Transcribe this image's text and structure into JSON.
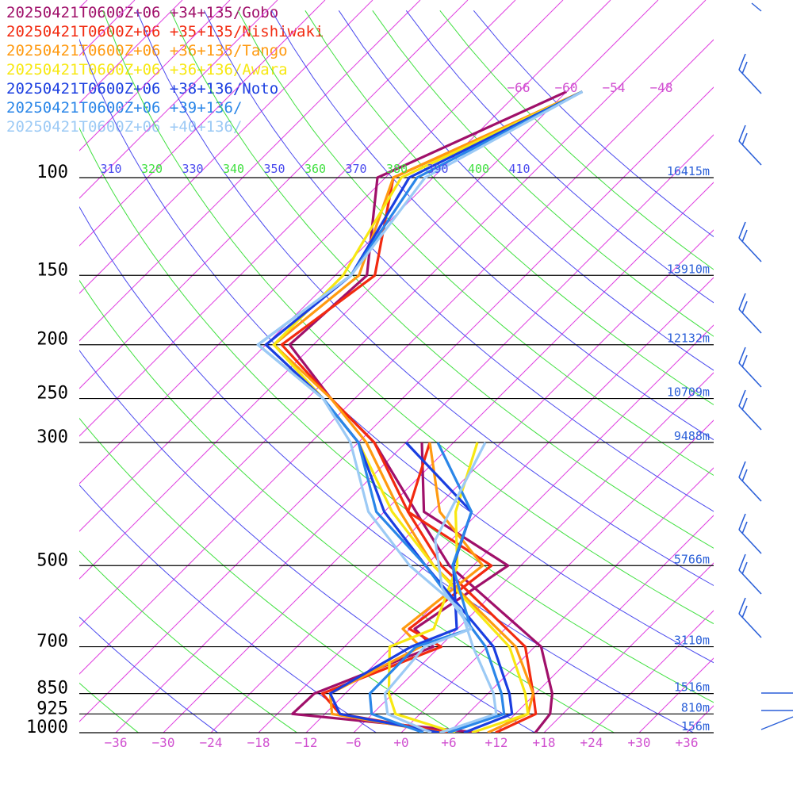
{
  "legend": [
    {
      "label": "20250421T0600Z+06 +34+135/Gobo",
      "color": "#a0106a"
    },
    {
      "label": "20250421T0600Z+06 +35+135/Nishiwaki",
      "color": "#f22a10"
    },
    {
      "label": "20250421T0600Z+06 +36+135/Tango",
      "color": "#ff9a10"
    },
    {
      "label": "20250421T0600Z+06 +36+136/Awara",
      "color": "#f7e812"
    },
    {
      "label": "20250421T0600Z+06 +38+136/Noto",
      "color": "#1a3ee0"
    },
    {
      "label": "20250421T0600Z+06 +39+136/",
      "color": "#2a86e8"
    },
    {
      "label": "20250421T0600Z+06 +40+136/",
      "color": "#9ccaf5"
    }
  ],
  "chart_data": {
    "type": "skew-t",
    "pressure_levels": [
      {
        "p": 100,
        "label": "100",
        "height": "16415m"
      },
      {
        "p": 150,
        "label": "150",
        "height": "13910m"
      },
      {
        "p": 200,
        "label": "200",
        "height": "12132m"
      },
      {
        "p": 250,
        "label": "250",
        "height": "10709m"
      },
      {
        "p": 300,
        "label": "300",
        "height": "9488m"
      },
      {
        "p": 500,
        "label": "500",
        "height": "5766m"
      },
      {
        "p": 700,
        "label": "700",
        "height": "3110m"
      },
      {
        "p": 850,
        "label": "850",
        "height": "1516m"
      },
      {
        "p": 925,
        "label": "925",
        "height": "810m"
      },
      {
        "p": 1000,
        "label": "1000",
        "height": "156m"
      }
    ],
    "x_ticks": [
      -36,
      -30,
      -24,
      -18,
      -12,
      -6,
      0,
      6,
      12,
      18,
      24,
      30,
      36
    ],
    "x_tick_labels": [
      "−36",
      "−30",
      "−24",
      "−18",
      "−12",
      "−6",
      "+0",
      "+6",
      "+12",
      "+18",
      "+24",
      "+30",
      "+36"
    ],
    "top_isotherm_labels": [
      {
        "t": -66,
        "label": "−66"
      },
      {
        "t": -60,
        "label": "−60"
      },
      {
        "t": -54,
        "label": "−54"
      },
      {
        "t": -48,
        "label": "−48"
      }
    ],
    "theta_labels": [
      "310",
      "320",
      "330",
      "340",
      "350",
      "360",
      "370",
      "380",
      "390",
      "400",
      "410"
    ],
    "colors": {
      "isotherm": "#e040e0",
      "isobar": "#000000",
      "dry_adiabat_a": "#4a4aee",
      "dry_adiabat_b": "#40e040",
      "height_label": "#2a5fd8",
      "tick_label": "#d050d0"
    },
    "series": [
      {
        "name": "20250421T0600Z+06 +34+135/Gobo",
        "temperature": [
          [
            1000,
            16.9
          ],
          [
            925,
            16.4
          ],
          [
            850,
            14.1
          ],
          [
            700,
            6.8
          ],
          [
            500,
            -15.0
          ],
          [
            400,
            -26.0
          ],
          [
            300,
            -40.0
          ],
          [
            250,
            -51.0
          ],
          [
            200,
            -63.0
          ],
          [
            150,
            -62.0
          ],
          [
            100,
            -73.0
          ],
          [
            70,
            -60.0
          ]
        ],
        "dewpoint": [
          [
            1000,
            9.8
          ],
          [
            925,
            -16.1
          ],
          [
            850,
            -15.9
          ],
          [
            700,
            -6.8
          ],
          [
            650,
            -11.4
          ],
          [
            500,
            -7.6
          ],
          [
            400,
            -25.0
          ],
          [
            300,
            -34.0
          ]
        ]
      },
      {
        "name": "20250421T0600Z+06 +35+135/Nishiwaki",
        "temperature": [
          [
            1000,
            11.9
          ],
          [
            925,
            14.6
          ],
          [
            850,
            11.7
          ],
          [
            700,
            4.8
          ],
          [
            500,
            -16.0
          ],
          [
            400,
            -27.0
          ],
          [
            300,
            -40.0
          ],
          [
            250,
            -51.0
          ],
          [
            200,
            -64.0
          ],
          [
            150,
            -61.0
          ],
          [
            100,
            -71.0
          ],
          [
            70,
            -58.0
          ]
        ],
        "dewpoint": [
          [
            1000,
            5.8
          ],
          [
            925,
            -10.1
          ],
          [
            850,
            -14.9
          ],
          [
            700,
            -5.8
          ],
          [
            650,
            -12.1
          ],
          [
            500,
            -9.7
          ],
          [
            400,
            -27.0
          ],
          [
            300,
            -33.0
          ]
        ]
      },
      {
        "name": "20250421T0600Z+06 +36+135/Tango",
        "temperature": [
          [
            1000,
            10.9
          ],
          [
            925,
            13.6
          ],
          [
            850,
            11.7
          ],
          [
            700,
            3.6
          ],
          [
            500,
            -17.0
          ],
          [
            400,
            -28.0
          ],
          [
            300,
            -41.0
          ],
          [
            250,
            -51.0
          ],
          [
            200,
            -65.0
          ],
          [
            150,
            -63.0
          ],
          [
            100,
            -71.0
          ],
          [
            70,
            -58.0
          ]
        ],
        "dewpoint": [
          [
            1000,
            5.0
          ],
          [
            925,
            -11.1
          ],
          [
            850,
            -13.9
          ],
          [
            700,
            -8.4
          ],
          [
            650,
            -12.9
          ],
          [
            500,
            -10.8
          ],
          [
            400,
            -23.0
          ],
          [
            300,
            -33.0
          ]
        ]
      },
      {
        "name": "20250421T0600Z+06 +36+136/Awara",
        "temperature": [
          [
            1000,
            8.9
          ],
          [
            925,
            13.6
          ],
          [
            850,
            10.7
          ],
          [
            700,
            2.8
          ],
          [
            500,
            -17.0
          ],
          [
            400,
            -29.0
          ],
          [
            300,
            -42.0
          ],
          [
            250,
            -52.0
          ],
          [
            200,
            -65.0
          ],
          [
            150,
            -65.0
          ],
          [
            100,
            -70.0
          ],
          [
            70,
            -58.0
          ]
        ],
        "dewpoint": [
          [
            1000,
            6.8
          ],
          [
            925,
            -3.1
          ],
          [
            850,
            -6.5
          ],
          [
            700,
            -12.3
          ],
          [
            650,
            -9.0
          ],
          [
            500,
            -14.0
          ],
          [
            400,
            -21.0
          ],
          [
            300,
            -27.0
          ]
        ]
      },
      {
        "name": "20250421T0600Z+06 +38+136/Noto",
        "temperature": [
          [
            1000,
            7.9
          ],
          [
            925,
            11.6
          ],
          [
            850,
            8.7
          ],
          [
            700,
            0.8
          ],
          [
            500,
            -18.0
          ],
          [
            400,
            -30.0
          ],
          [
            300,
            -42.0
          ],
          [
            250,
            -52.0
          ],
          [
            200,
            -66.0
          ],
          [
            150,
            -64.0
          ],
          [
            100,
            -69.0
          ],
          [
            70,
            -58.0
          ]
        ],
        "dewpoint": [
          [
            1000,
            4.8
          ],
          [
            925,
            -10.1
          ],
          [
            850,
            -13.9
          ],
          [
            700,
            -9.6
          ],
          [
            650,
            -6.1
          ],
          [
            500,
            -14.5
          ],
          [
            400,
            -19.0
          ],
          [
            300,
            -36.0
          ]
        ]
      },
      {
        "name": "20250421T0600Z+06 +39+136/",
        "temperature": [
          [
            1000,
            5.9
          ],
          [
            925,
            10.6
          ],
          [
            850,
            7.7
          ],
          [
            700,
            -0.2
          ],
          [
            500,
            -18.0
          ],
          [
            400,
            -31.0
          ],
          [
            300,
            -42.0
          ],
          [
            250,
            -52.0
          ],
          [
            200,
            -67.0
          ],
          [
            150,
            -64.0
          ],
          [
            100,
            -68.0
          ],
          [
            70,
            -58.0
          ]
        ],
        "dewpoint": [
          [
            1000,
            2.8
          ],
          [
            925,
            -6.1
          ],
          [
            850,
            -8.9
          ],
          [
            700,
            -9.0
          ],
          [
            650,
            -4.3
          ],
          [
            500,
            -14.6
          ],
          [
            400,
            -19.0
          ],
          [
            300,
            -32.0
          ]
        ]
      },
      {
        "name": "20250421T0600Z+06 +40+136/",
        "temperature": [
          [
            1000,
            4.9
          ],
          [
            925,
            9.6
          ],
          [
            850,
            6.7
          ],
          [
            700,
            -1.8
          ],
          [
            600,
            -8.0
          ],
          [
            500,
            -20.0
          ],
          [
            400,
            -32.0
          ],
          [
            300,
            -43.0
          ],
          [
            250,
            -52.0
          ],
          [
            200,
            -67.0
          ],
          [
            150,
            -64.0
          ],
          [
            100,
            -67.0
          ],
          [
            70,
            -58.0
          ]
        ],
        "dewpoint": [
          [
            1000,
            3.8
          ],
          [
            925,
            -4.1
          ],
          [
            850,
            -7.0
          ],
          [
            700,
            -7.9
          ],
          [
            650,
            -4.3
          ],
          [
            550,
            -13.0
          ],
          [
            450,
            -20.0
          ],
          [
            300,
            -26.0
          ]
        ]
      }
    ]
  }
}
